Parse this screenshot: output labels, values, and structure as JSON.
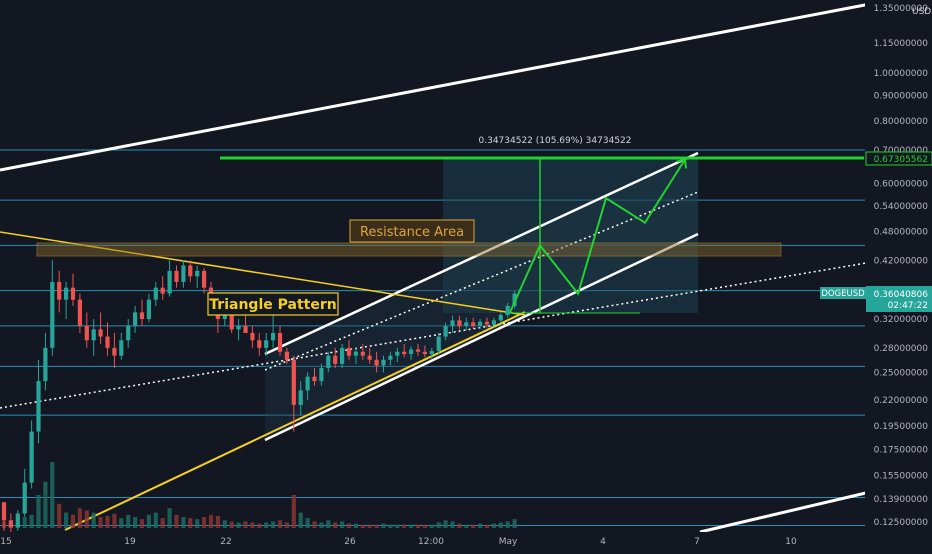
{
  "chart_data": {
    "type": "candlestick",
    "symbol": "DOGEUSD",
    "currency": "USD",
    "y_axis_scale": "log",
    "y_axis_ticks": [
      "1.35000000",
      "1.15000000",
      "1.00000000",
      "0.90000000",
      "0.80000000",
      "0.70000000",
      "0.60000000",
      "0.54000000",
      "0.48000000",
      "0.42000000",
      "0.32000000",
      "0.28000000",
      "0.25000000",
      "0.22000000",
      "0.19500000",
      "0.17500000",
      "0.15500000",
      "0.13900000",
      "0.12500000"
    ],
    "x_axis_ticks": [
      "15",
      "19",
      "22",
      "26",
      "12:00",
      "May",
      "4",
      "7",
      "10"
    ],
    "price_labels": {
      "current": "0.36040806",
      "countdown": "02:47:22",
      "target": "0.67305562"
    },
    "measure_label": "0.34734522 (105.69%) 34734522",
    "annotations": [
      "Resistance Area",
      "Triangle Pattern"
    ],
    "horizontal_levels": [
      0.7,
      0.555,
      0.45,
      0.365,
      0.31,
      0.257,
      0.205,
      0.14,
      0.123
    ],
    "candles": [
      [
        0,
        0.137,
        0.137,
        0.12,
        0.126
      ],
      [
        1,
        0.126,
        0.13,
        0.118,
        0.122
      ],
      [
        2,
        0.122,
        0.132,
        0.12,
        0.13
      ],
      [
        3,
        0.13,
        0.16,
        0.128,
        0.15
      ],
      [
        4,
        0.15,
        0.2,
        0.146,
        0.19
      ],
      [
        5,
        0.19,
        0.265,
        0.18,
        0.24
      ],
      [
        6,
        0.24,
        0.3,
        0.23,
        0.28
      ],
      [
        7,
        0.28,
        0.42,
        0.27,
        0.38
      ],
      [
        8,
        0.38,
        0.4,
        0.33,
        0.35
      ],
      [
        9,
        0.35,
        0.38,
        0.32,
        0.37
      ],
      [
        10,
        0.37,
        0.395,
        0.34,
        0.35
      ],
      [
        11,
        0.35,
        0.36,
        0.3,
        0.31
      ],
      [
        12,
        0.31,
        0.33,
        0.28,
        0.29
      ],
      [
        13,
        0.29,
        0.32,
        0.27,
        0.305
      ],
      [
        14,
        0.305,
        0.33,
        0.285,
        0.295
      ],
      [
        15,
        0.295,
        0.315,
        0.27,
        0.28
      ],
      [
        16,
        0.28,
        0.3,
        0.255,
        0.27
      ],
      [
        17,
        0.27,
        0.3,
        0.265,
        0.29
      ],
      [
        18,
        0.29,
        0.32,
        0.28,
        0.31
      ],
      [
        19,
        0.31,
        0.34,
        0.3,
        0.33
      ],
      [
        20,
        0.33,
        0.35,
        0.31,
        0.32
      ],
      [
        21,
        0.32,
        0.36,
        0.315,
        0.35
      ],
      [
        22,
        0.35,
        0.38,
        0.34,
        0.37
      ],
      [
        23,
        0.37,
        0.39,
        0.35,
        0.36
      ],
      [
        24,
        0.36,
        0.42,
        0.355,
        0.4
      ],
      [
        25,
        0.4,
        0.41,
        0.37,
        0.38
      ],
      [
        26,
        0.38,
        0.42,
        0.37,
        0.41
      ],
      [
        27,
        0.41,
        0.42,
        0.38,
        0.39
      ],
      [
        28,
        0.39,
        0.41,
        0.37,
        0.4
      ],
      [
        29,
        0.4,
        0.405,
        0.36,
        0.37
      ],
      [
        30,
        0.37,
        0.38,
        0.33,
        0.34
      ],
      [
        31,
        0.34,
        0.35,
        0.3,
        0.32
      ],
      [
        32,
        0.32,
        0.34,
        0.31,
        0.33
      ],
      [
        33,
        0.33,
        0.34,
        0.3,
        0.305
      ],
      [
        34,
        0.305,
        0.32,
        0.29,
        0.31
      ],
      [
        35,
        0.31,
        0.33,
        0.3,
        0.3
      ],
      [
        36,
        0.3,
        0.31,
        0.28,
        0.29
      ],
      [
        37,
        0.29,
        0.3,
        0.27,
        0.28
      ],
      [
        38,
        0.28,
        0.3,
        0.27,
        0.29
      ],
      [
        39,
        0.29,
        0.33,
        0.28,
        0.3
      ],
      [
        40,
        0.3,
        0.31,
        0.27,
        0.275
      ],
      [
        41,
        0.275,
        0.28,
        0.26,
        0.265
      ],
      [
        42,
        0.265,
        0.27,
        0.19,
        0.215
      ],
      [
        43,
        0.215,
        0.24,
        0.205,
        0.23
      ],
      [
        44,
        0.23,
        0.25,
        0.22,
        0.245
      ],
      [
        45,
        0.245,
        0.255,
        0.235,
        0.24
      ],
      [
        46,
        0.24,
        0.26,
        0.235,
        0.255
      ],
      [
        47,
        0.255,
        0.275,
        0.25,
        0.27
      ],
      [
        48,
        0.27,
        0.28,
        0.255,
        0.26
      ],
      [
        49,
        0.26,
        0.285,
        0.255,
        0.28
      ],
      [
        50,
        0.28,
        0.29,
        0.265,
        0.27
      ],
      [
        51,
        0.27,
        0.28,
        0.26,
        0.275
      ],
      [
        52,
        0.275,
        0.285,
        0.265,
        0.27
      ],
      [
        53,
        0.27,
        0.28,
        0.26,
        0.265
      ],
      [
        54,
        0.265,
        0.275,
        0.25,
        0.258
      ],
      [
        55,
        0.258,
        0.27,
        0.25,
        0.265
      ],
      [
        56,
        0.265,
        0.275,
        0.258,
        0.27
      ],
      [
        57,
        0.27,
        0.28,
        0.262,
        0.275
      ],
      [
        58,
        0.275,
        0.285,
        0.268,
        0.272
      ],
      [
        59,
        0.272,
        0.282,
        0.265,
        0.278
      ],
      [
        60,
        0.278,
        0.285,
        0.27,
        0.275
      ],
      [
        61,
        0.275,
        0.283,
        0.268,
        0.272
      ],
      [
        62,
        0.272,
        0.28,
        0.266,
        0.276
      ],
      [
        63,
        0.276,
        0.3,
        0.272,
        0.295
      ],
      [
        64,
        0.295,
        0.315,
        0.29,
        0.31
      ],
      [
        65,
        0.31,
        0.325,
        0.3,
        0.318
      ],
      [
        66,
        0.318,
        0.325,
        0.305,
        0.31
      ],
      [
        67,
        0.31,
        0.322,
        0.304,
        0.315
      ],
      [
        68,
        0.315,
        0.322,
        0.306,
        0.31
      ],
      [
        69,
        0.31,
        0.32,
        0.305,
        0.316
      ],
      [
        70,
        0.316,
        0.322,
        0.308,
        0.312
      ],
      [
        71,
        0.312,
        0.322,
        0.308,
        0.318
      ],
      [
        72,
        0.318,
        0.33,
        0.314,
        0.326
      ],
      [
        73,
        0.326,
        0.345,
        0.322,
        0.34
      ],
      [
        74,
        0.34,
        0.365,
        0.336,
        0.36
      ]
    ],
    "volume": [
      6,
      4,
      3,
      10,
      12,
      30,
      42,
      60,
      22,
      14,
      12,
      18,
      16,
      14,
      10,
      11,
      13,
      9,
      12,
      10,
      8,
      12,
      14,
      9,
      18,
      12,
      10,
      9,
      8,
      10,
      12,
      11,
      7,
      6,
      5,
      6,
      5,
      4,
      5,
      6,
      7,
      5,
      30,
      14,
      9,
      6,
      5,
      7,
      5,
      6,
      4,
      4,
      3,
      3,
      3,
      4,
      3,
      3,
      3,
      3,
      3,
      3,
      3,
      5,
      7,
      6,
      4,
      3,
      3,
      4,
      3,
      4,
      5,
      6,
      8
    ],
    "projection_path_prices": [
      0.33,
      0.45,
      0.36,
      0.56,
      0.5,
      0.67
    ]
  }
}
